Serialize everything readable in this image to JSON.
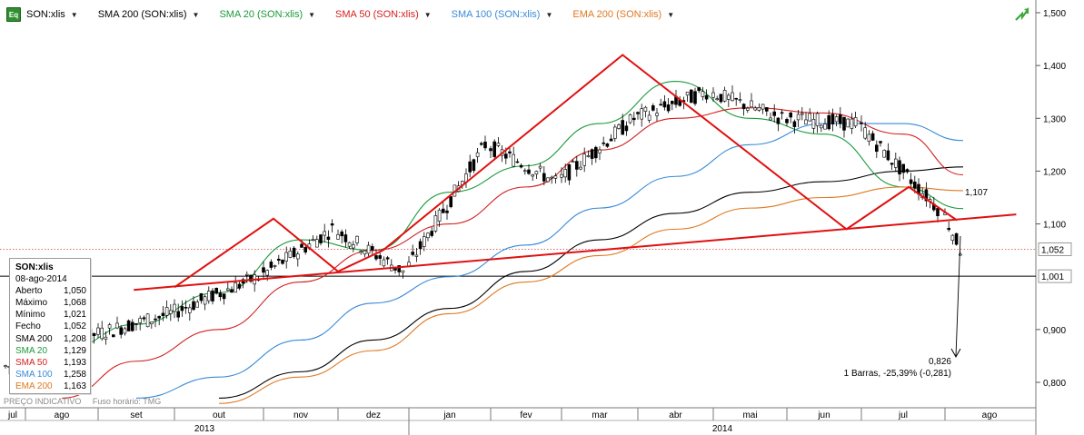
{
  "legend": [
    {
      "label": "SON:xlis",
      "color": "#000000"
    },
    {
      "label": "SMA 200 (SON:xlis)",
      "color": "#000000"
    },
    {
      "label": "SMA 20 (SON:xlis)",
      "color": "#1a9a3a"
    },
    {
      "label": "SMA 50 (SON:xlis)",
      "color": "#d42020"
    },
    {
      "label": "SMA 100 (SON:xlis)",
      "color": "#3a8ad8"
    },
    {
      "label": "EMA 200 (SON:xlis)",
      "color": "#e07820"
    }
  ],
  "badge": "Eq",
  "info_box": {
    "title": "SON:xlis",
    "date": "08-ago-2014",
    "rows": [
      {
        "label": "Aberto",
        "value": "1,050",
        "color": "#000000"
      },
      {
        "label": "Máximo",
        "value": "1,068",
        "color": "#000000"
      },
      {
        "label": "Mínimo",
        "value": "1,021",
        "color": "#000000"
      },
      {
        "label": "Fecho",
        "value": "1,052",
        "color": "#000000"
      },
      {
        "label": "SMA 200",
        "value": "1,208",
        "color": "#000000"
      },
      {
        "label": "SMA 20",
        "value": "1,129",
        "color": "#1a9a3a"
      },
      {
        "label": "SMA 50",
        "value": "1,193",
        "color": "#d42020"
      },
      {
        "label": "SMA 100",
        "value": "1,258",
        "color": "#3a8ad8"
      },
      {
        "label": "EMA 200",
        "value": "1,163",
        "color": "#e07820"
      }
    ]
  },
  "footer": {
    "left": "PREÇO INDICATIVO",
    "right": "Fuso horário: TMG"
  },
  "annotations": {
    "neckline_label": "1,107",
    "target_value": "0,826",
    "target_text": "1 Barras, -25,39% (-0,281)"
  },
  "price_labels": {
    "current": "1,052",
    "reference": "1,001"
  },
  "chart_data": {
    "type": "line",
    "ylim": [
      0.75,
      1.52
    ],
    "y_ticks": [
      {
        "v": 1.5,
        "label": "1,500"
      },
      {
        "v": 1.4,
        "label": "1,400"
      },
      {
        "v": 1.3,
        "label": "1,300"
      },
      {
        "v": 1.2,
        "label": "1,200"
      },
      {
        "v": 1.1,
        "label": "1,100"
      },
      {
        "v": 0.9,
        "label": "0,900"
      },
      {
        "v": 0.8,
        "label": "0,800"
      }
    ],
    "x_months": [
      "jul",
      "ago",
      "set",
      "out",
      "nov",
      "dez",
      "jan",
      "fev",
      "mar",
      "abr",
      "mai",
      "jun",
      "jul",
      "ago"
    ],
    "x_years": [
      "2013",
      "2014"
    ],
    "x": [
      "2013-07",
      "2013-08",
      "2013-09",
      "2013-10",
      "2013-11",
      "2013-12",
      "2014-01",
      "2014-02",
      "2014-03",
      "2014-04",
      "2014-05",
      "2014-06",
      "2014-07",
      "2014-08"
    ],
    "series": [
      {
        "name": "SON:xlis",
        "color": "#000000",
        "values": [
          0.83,
          0.89,
          0.93,
          1.0,
          1.09,
          1.01,
          1.25,
          1.18,
          1.3,
          1.35,
          1.3,
          1.29,
          1.13,
          1.052
        ]
      },
      {
        "name": "SMA 200",
        "color": "#000000",
        "values": [
          null,
          null,
          null,
          0.77,
          0.82,
          0.88,
          0.94,
          1.01,
          1.07,
          1.12,
          1.16,
          1.18,
          1.2,
          1.208
        ]
      },
      {
        "name": "SMA 20",
        "color": "#1a9a3a",
        "values": [
          0.82,
          0.86,
          0.91,
          0.97,
          1.07,
          1.05,
          1.16,
          1.21,
          1.29,
          1.37,
          1.3,
          1.27,
          1.17,
          1.129
        ]
      },
      {
        "name": "SMA 50",
        "color": "#d42020",
        "values": [
          null,
          0.77,
          0.84,
          0.9,
          0.99,
          1.05,
          1.1,
          1.17,
          1.24,
          1.3,
          1.32,
          1.31,
          1.27,
          1.193
        ]
      },
      {
        "name": "SMA 100",
        "color": "#3a8ad8",
        "values": [
          null,
          null,
          0.77,
          0.81,
          0.88,
          0.95,
          1.0,
          1.06,
          1.13,
          1.19,
          1.25,
          1.29,
          1.29,
          1.258
        ]
      },
      {
        "name": "EMA 200",
        "color": "#e07820",
        "values": [
          null,
          null,
          null,
          0.76,
          0.81,
          0.86,
          0.93,
          0.99,
          1.04,
          1.09,
          1.13,
          1.15,
          1.17,
          1.163
        ]
      }
    ]
  },
  "trend_lines": [
    {
      "kind": "neckline",
      "from": {
        "x": "2013-09-15",
        "y": 0.975
      },
      "to": {
        "x": "2014-08-25",
        "y": 1.118
      }
    },
    {
      "kind": "pattern",
      "points": [
        {
          "x": "2013-10-01",
          "y": 0.98
        },
        {
          "x": "2013-11-05",
          "y": 1.11
        },
        {
          "x": "2013-12-01",
          "y": 1.01
        },
        {
          "x": "2013-12-20",
          "y": 1.05
        },
        {
          "x": "2014-03-25",
          "y": 1.42
        },
        {
          "x": "2014-06-25",
          "y": 1.09
        },
        {
          "x": "2014-07-18",
          "y": 1.17
        },
        {
          "x": "2014-08-05",
          "y": 1.107
        }
      ]
    }
  ]
}
